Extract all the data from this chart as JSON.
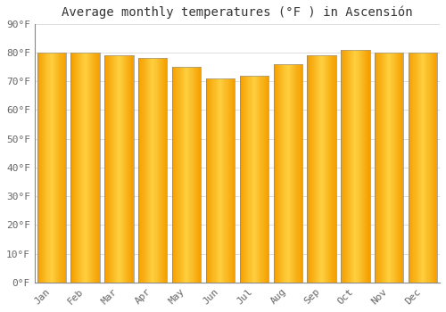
{
  "title": "Average monthly temperatures (°F ) in Ascensión",
  "months": [
    "Jan",
    "Feb",
    "Mar",
    "Apr",
    "May",
    "Jun",
    "Jul",
    "Aug",
    "Sep",
    "Oct",
    "Nov",
    "Dec"
  ],
  "values": [
    80,
    80,
    79,
    78,
    75,
    71,
    72,
    76,
    79,
    81,
    80,
    80
  ],
  "bar_color_center": "#FFD040",
  "bar_color_edge": "#F5A000",
  "bar_edge_color": "#888888",
  "ylim": [
    0,
    90
  ],
  "yticks": [
    0,
    10,
    20,
    30,
    40,
    50,
    60,
    70,
    80,
    90
  ],
  "ytick_labels": [
    "0°F",
    "10°F",
    "20°F",
    "30°F",
    "40°F",
    "50°F",
    "60°F",
    "70°F",
    "80°F",
    "90°F"
  ],
  "background_color": "#FFFFFF",
  "grid_color": "#DDDDDD",
  "title_fontsize": 10,
  "tick_fontsize": 8,
  "font_family": "monospace",
  "bar_width": 0.85
}
